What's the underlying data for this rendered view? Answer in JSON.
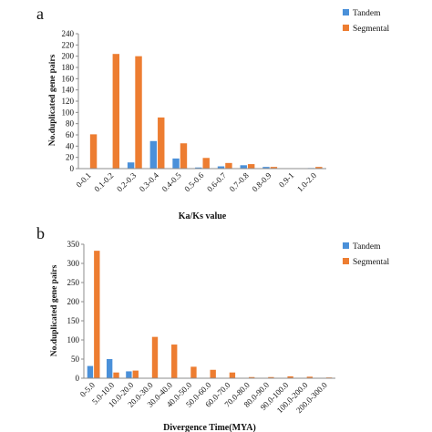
{
  "chart_data": [
    {
      "type": "bar",
      "panel_label": "a",
      "categories": [
        "0-0.1",
        "0.1-0.2",
        "0.2-0.3",
        "0.3-0.4",
        "0.4-0.5",
        "0.5-0.6",
        "0.6-0.7",
        "0.7-0.8",
        "0.8-0.9",
        "0.9-1",
        "1.0-2.0"
      ],
      "series": [
        {
          "name": "Tandem",
          "color": "#4a90d9",
          "values": [
            0,
            0,
            11,
            49,
            18,
            2,
            4,
            6,
            3,
            0,
            1
          ]
        },
        {
          "name": "Segmental",
          "color": "#ed7d31",
          "values": [
            61,
            204,
            200,
            91,
            45,
            19,
            10,
            8,
            3,
            0,
            3
          ]
        }
      ],
      "ylabel": "No.duplicated gene pairs",
      "xlabel": "Ka/Ks value",
      "ylim": [
        0,
        240
      ],
      "yticks": [
        0,
        20,
        40,
        60,
        80,
        100,
        120,
        140,
        160,
        180,
        200,
        220,
        240
      ],
      "grid": false,
      "legend": "top-right"
    },
    {
      "type": "bar",
      "panel_label": "b",
      "categories": [
        "0-5.0",
        "5.0-10.0",
        "10.0-20.0",
        "20.0-30.0",
        "30.0-40.0",
        "40.0-50.0",
        "50.0-60.0",
        "60.0-70.0",
        "70.0-80.0",
        "80.0-90.0",
        "90.0-100.0",
        "100.0-200.0",
        "200.0-300.0"
      ],
      "series": [
        {
          "name": "Tandem",
          "color": "#4a90d9",
          "values": [
            32,
            50,
            18,
            0,
            0,
            0,
            0,
            0,
            0,
            0,
            0,
            0,
            0
          ]
        },
        {
          "name": "Segmental",
          "color": "#ed7d31",
          "values": [
            333,
            15,
            20,
            108,
            88,
            30,
            22,
            15,
            3,
            3,
            5,
            4,
            2
          ]
        }
      ],
      "ylabel": "No.duplicated gene pairs",
      "xlabel": "Divergence Time(MYA)",
      "ylim": [
        0,
        350
      ],
      "yticks": [
        0,
        50,
        100,
        150,
        200,
        250,
        300,
        350
      ],
      "grid": false,
      "legend": "top-right"
    }
  ]
}
